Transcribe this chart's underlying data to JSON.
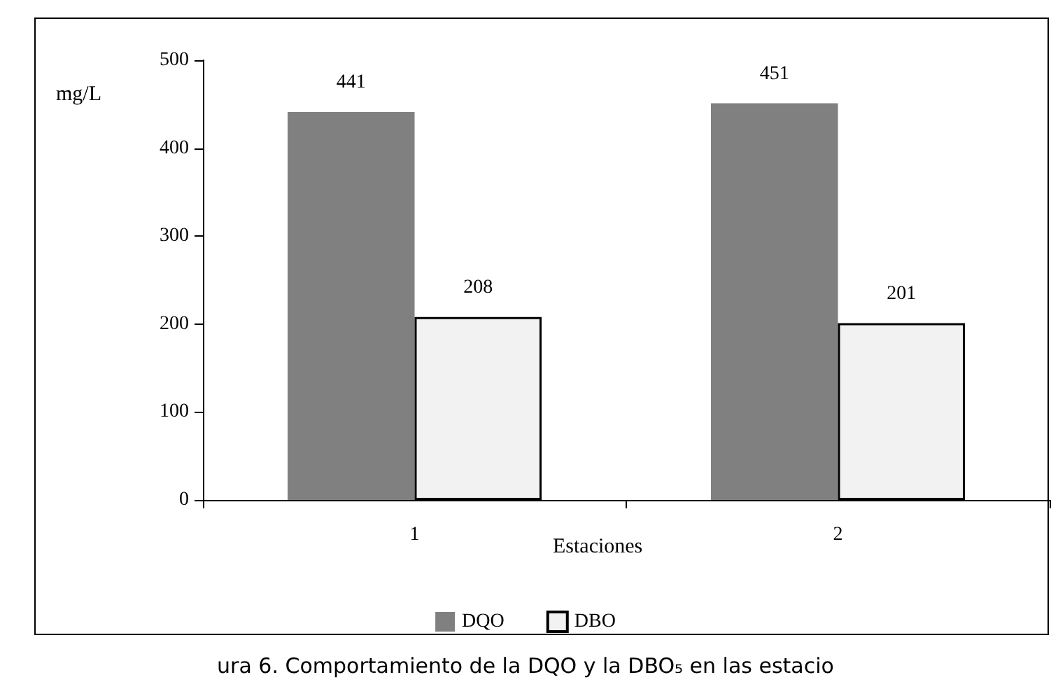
{
  "chart_data": {
    "type": "bar",
    "categories": [
      "1",
      "2"
    ],
    "series": [
      {
        "name": "DQO",
        "color": "#808080",
        "values": [
          441,
          451
        ]
      },
      {
        "name": "DBO",
        "color": "#f2f2f2",
        "values": [
          208,
          201
        ]
      }
    ],
    "ylabel": "mg/L",
    "xlabel": "Estaciones",
    "ylim": [
      0,
      500
    ],
    "yticks": [
      0,
      100,
      200,
      300,
      400,
      500
    ],
    "data_labels": true,
    "grid": false,
    "legend": "bottom",
    "annotations": [
      "ura 6. Comportamiento de la DQO y la DBO₅ en las estacio"
    ]
  }
}
